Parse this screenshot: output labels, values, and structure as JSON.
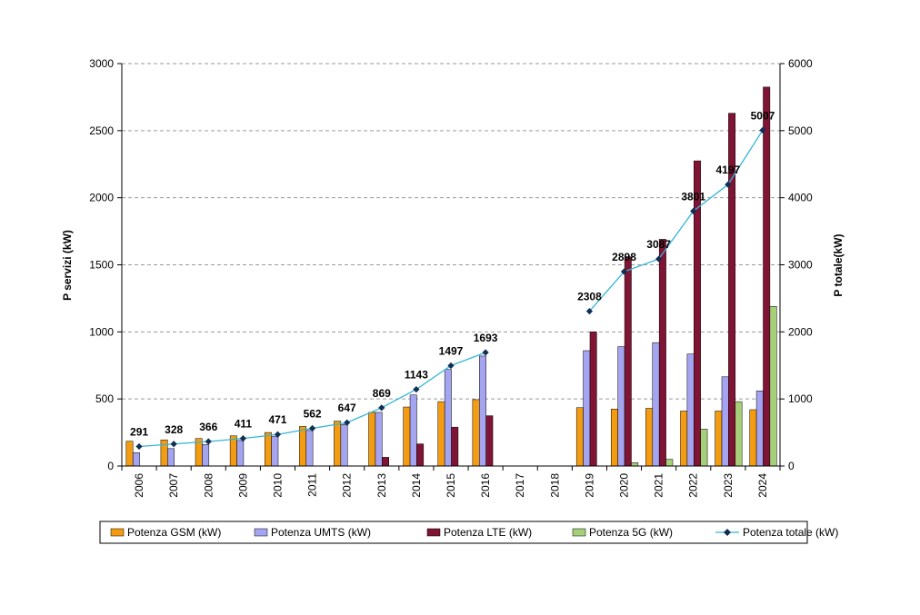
{
  "chart_data": {
    "type": "bar",
    "title": "",
    "categories": [
      "2006",
      "2007",
      "2008",
      "2009",
      "2010",
      "2011",
      "2012",
      "2013",
      "2014",
      "2015",
      "2016",
      "2017",
      "2018",
      "2019",
      "2020",
      "2021",
      "2022",
      "2023",
      "2024"
    ],
    "ylabel": "P servizi (kW)",
    "y2label": "P totale(kW)",
    "ylim": [
      0,
      3000
    ],
    "y2lim": [
      0,
      6000
    ],
    "yticks": [
      "0",
      "500",
      "1000",
      "1500",
      "2000",
      "2500",
      "3000"
    ],
    "y2ticks": [
      "0",
      "1000",
      "2000",
      "3000",
      "4000",
      "5000",
      "6000"
    ],
    "grid": true,
    "legend_position": "bottom",
    "series": [
      {
        "name": "Potenza  GSM (kW)",
        "type": "bar",
        "axis": "left",
        "color": "#f39c12",
        "values": [
          185,
          195,
          205,
          225,
          250,
          295,
          335,
          400,
          440,
          480,
          495,
          null,
          null,
          435,
          425,
          430,
          410,
          410,
          420
        ]
      },
      {
        "name": "Potenza UMTS (kW)",
        "type": "bar",
        "axis": "left",
        "color": "#a4a4f0",
        "values": [
          100,
          130,
          160,
          190,
          220,
          265,
          310,
          400,
          530,
          720,
          820,
          null,
          null,
          860,
          890,
          920,
          835,
          665,
          560
        ]
      },
      {
        "name": "Potenza LTE (kW)",
        "type": "bar",
        "axis": "left",
        "color": "#7f1434",
        "values": [
          null,
          null,
          null,
          null,
          null,
          null,
          null,
          65,
          165,
          290,
          375,
          null,
          null,
          1000,
          1560,
          1690,
          2275,
          2630,
          2825
        ]
      },
      {
        "name": "Potenza 5G (kW)",
        "type": "bar",
        "axis": "left",
        "color": "#a6cf79",
        "values": [
          null,
          null,
          null,
          null,
          null,
          null,
          null,
          null,
          null,
          null,
          null,
          null,
          null,
          null,
          25,
          50,
          275,
          480,
          1190
        ]
      },
      {
        "name": "Potenza totale (kW)",
        "type": "line",
        "axis": "right",
        "color": "#33b5d6",
        "marker_color": "#0f2f55",
        "values": [
          291,
          328,
          366,
          411,
          471,
          562,
          647,
          869,
          1143,
          1497,
          1693,
          null,
          null,
          2308,
          2898,
          3087,
          3801,
          4197,
          5007
        ],
        "labels": [
          "291",
          "328",
          "366",
          "411",
          "471",
          "562",
          "647",
          "869",
          "1143",
          "1497",
          "1693",
          "",
          "",
          "2308",
          "2898",
          "3087",
          "3801",
          "4197",
          "5007"
        ]
      }
    ]
  }
}
